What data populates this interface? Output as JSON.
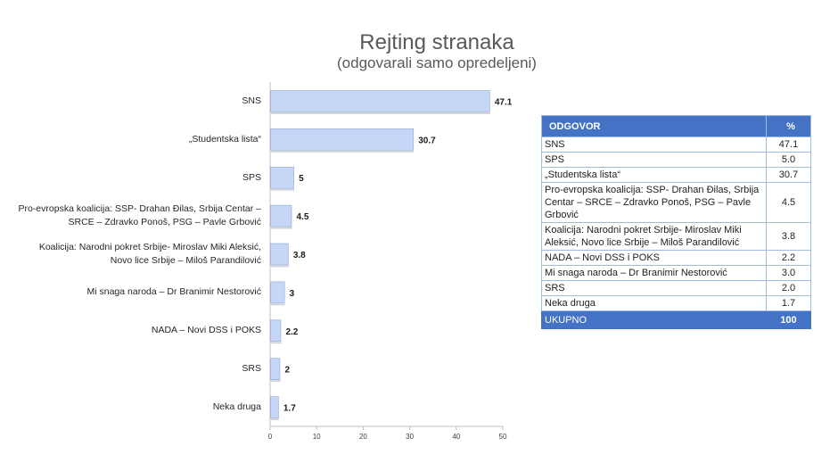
{
  "chart_data": {
    "type": "bar",
    "orientation": "horizontal",
    "title": "Rejting stranaka",
    "subtitle": "(odgovarali samo opredeljeni)",
    "categories": [
      [
        "SNS"
      ],
      [
        "„Studentska lista“"
      ],
      [
        "SPS"
      ],
      [
        "Pro-evropska koalicija: SSP- Drahan Đilas, Srbija Centar –",
        "SRCE – Zdravko Ponoš, PSG – Pavle Grbović"
      ],
      [
        "Koalicija: Narodni pokret Srbije- Miroslav Miki Aleksić,",
        "Novo lice Srbije – Miloš Parandilović"
      ],
      [
        "Mi snaga naroda – Dr Branimir Nestorović"
      ],
      [
        "NADA – Novi DSS i POKS"
      ],
      [
        "SRS"
      ],
      [
        "Neka druga"
      ]
    ],
    "values": [
      47.1,
      30.7,
      5,
      4.5,
      3.8,
      3,
      2.2,
      2,
      1.7
    ],
    "value_labels": [
      "47.1",
      "30.7",
      "5",
      "4.5",
      "3.8",
      "3",
      "2.2",
      "2",
      "1.7"
    ],
    "xlim": [
      0,
      50
    ],
    "x_ticks": [
      "0",
      "10",
      "20",
      "30",
      "40",
      "50"
    ],
    "grid": false,
    "colors": {
      "bar_fill": "#c5d6f6",
      "bar_stroke": "#8faadc",
      "axis": "#bfbfbf"
    }
  },
  "table": {
    "header": {
      "label": "ODGOVOR",
      "value": "%"
    },
    "rows": [
      {
        "label": "SNS",
        "value": "47.1"
      },
      {
        "label": "SPS",
        "value": "5.0"
      },
      {
        "label": "„Studentska lista“",
        "value": "30.7"
      },
      {
        "label": "Pro-evropska koalicija: SSP- Drahan Đilas, Srbija Centar – SRCE – Zdravko Ponoš, PSG – Pavle Grbović",
        "value": "4.5"
      },
      {
        "label": "Koalicija: Narodni pokret Srbije- Miroslav Miki Aleksić, Novo lice Srbije – Miloš Parandilović",
        "value": "3.8"
      },
      {
        "label": "NADA – Novi DSS i POKS",
        "value": "2.2"
      },
      {
        "label": "Mi snaga naroda – Dr Branimir Nestorović",
        "value": "3.0"
      },
      {
        "label": "SRS",
        "value": "2.0"
      },
      {
        "label": "Neka druga",
        "value": "1.7"
      }
    ],
    "footer": {
      "label": "UKUPNO",
      "value": "100"
    },
    "colors": {
      "header_bg": "#4472c4",
      "border": "#9dbbe3"
    }
  }
}
